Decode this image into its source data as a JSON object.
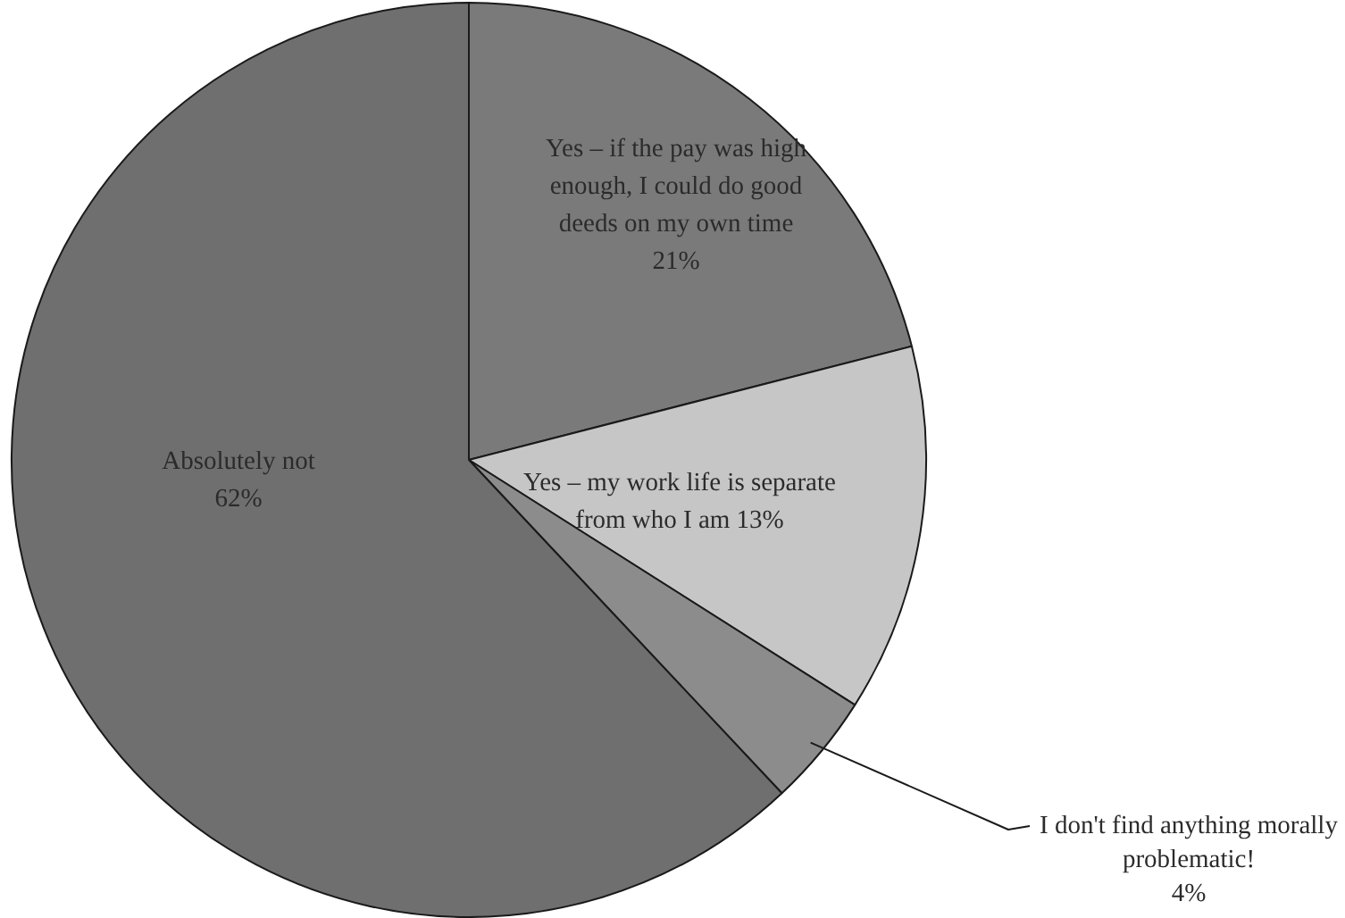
{
  "chart_data": {
    "type": "pie",
    "categories": [
      "Yes – if the pay was high enough, I could do good deeds on my own time",
      "Yes – my work life is separate from who I am",
      "I don't find anything morally problematic!",
      "Absolutely not"
    ],
    "values": [
      21,
      13,
      4,
      62
    ],
    "value_labels": [
      "21%",
      "13%",
      "4%",
      "62%"
    ],
    "colors": [
      "#7a7a7a",
      "#c6c6c6",
      "#8c8c8c",
      "#6f6f6f"
    ]
  }
}
